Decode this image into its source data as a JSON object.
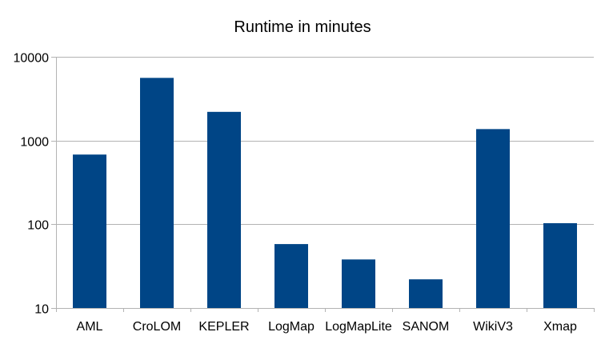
{
  "chart_data": {
    "type": "bar",
    "title": "Runtime in minutes",
    "xlabel": "",
    "ylabel": "",
    "yscale": "log",
    "ylim": [
      10,
      10000
    ],
    "yticks": [
      10,
      100,
      1000,
      10000
    ],
    "ytick_labels": [
      "10",
      "100",
      "1000",
      "10000"
    ],
    "grid": true,
    "legend": "none",
    "categories": [
      "AML",
      "CroLOM",
      "KEPLER",
      "LogMap",
      "LogMapLite",
      "SANOM",
      "WikiV3",
      "Xmap"
    ],
    "values": [
      680,
      5600,
      2200,
      58,
      38,
      22,
      1370,
      103
    ],
    "colors": {
      "bar": "#004586",
      "grid": "#b3b3b3",
      "axis": "#b3b3b3",
      "text": "#000000"
    }
  }
}
